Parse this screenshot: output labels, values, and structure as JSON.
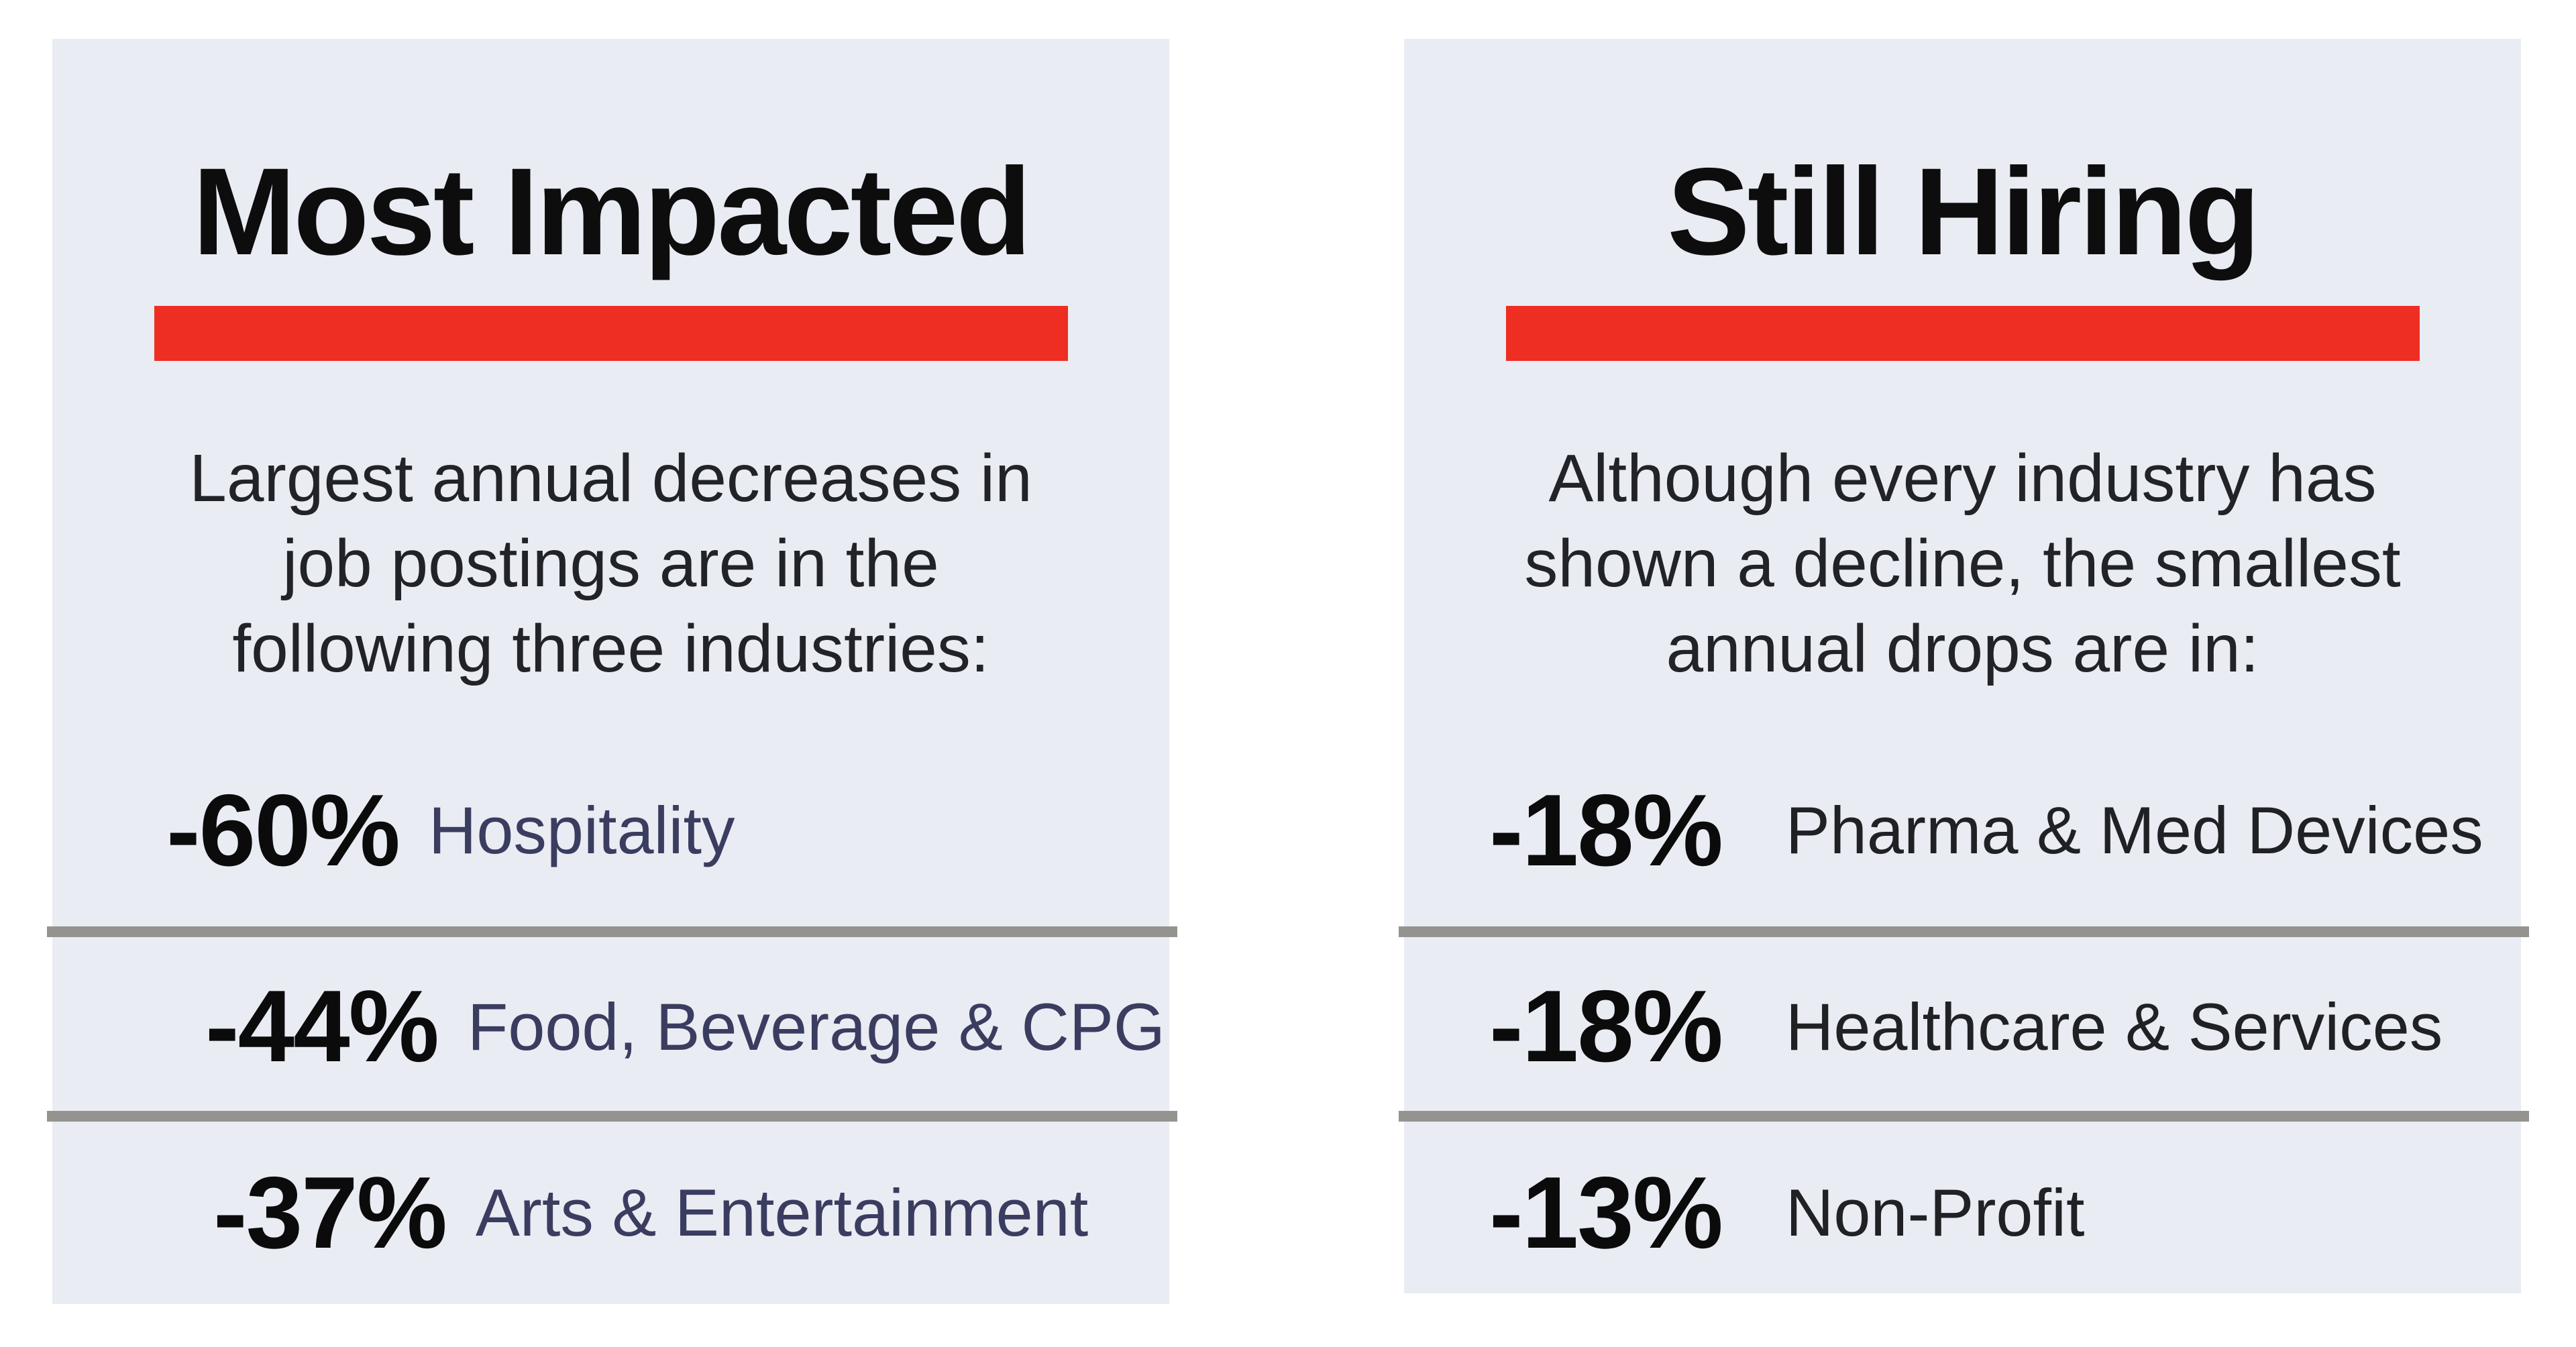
{
  "page": {
    "background": "#ffffff"
  },
  "style": {
    "panel_bg": "#e9ecf2",
    "accent_red": "#ee2d23",
    "divider_gray": "#95938f",
    "title_color": "#0d0d0e",
    "intro_color": "#212328",
    "impacted_label_color": "#3a3d60",
    "hiring_label_color": "#202124",
    "value_color": "#0b0b0c",
    "page_bg": "#ffffff"
  },
  "panels": [
    {
      "id": "most-impacted",
      "title": "Most Impacted",
      "intro": "Largest annual decreases in\njob postings are in the\nfollowing three industries:",
      "rows": [
        {
          "value": "-60%",
          "label": "Hospitality"
        },
        {
          "value": "-44%",
          "label": "Food, Beverage & CPG"
        },
        {
          "value": "-37%",
          "label": "Arts & Entertainment"
        }
      ]
    },
    {
      "id": "still-hiring",
      "title": "Still Hiring",
      "intro": "Although every industry has\nshown a decline, the smallest\nannual drops are in:",
      "rows": [
        {
          "value": "-18%",
          "label": "Pharma & Med Devices"
        },
        {
          "value": "-18%",
          "label": "Healthcare & Services"
        },
        {
          "value": "-13%",
          "label": "Non-Profit"
        }
      ]
    }
  ],
  "chart_data": {
    "type": "table",
    "title": "Annual change in job postings by industry",
    "unit": "%",
    "series": [
      {
        "name": "Most Impacted",
        "description": "Largest annual decreases in job postings are in the following three industries:",
        "categories": [
          "Hospitality",
          "Food, Beverage & CPG",
          "Arts & Entertainment"
        ],
        "values": [
          -60,
          -44,
          -37
        ]
      },
      {
        "name": "Still Hiring",
        "description": "Although every industry has shown a decline, the smallest annual drops are in:",
        "categories": [
          "Pharma & Med Devices",
          "Healthcare & Services",
          "Non-Profit"
        ],
        "values": [
          -18,
          -18,
          -13
        ]
      }
    ]
  }
}
